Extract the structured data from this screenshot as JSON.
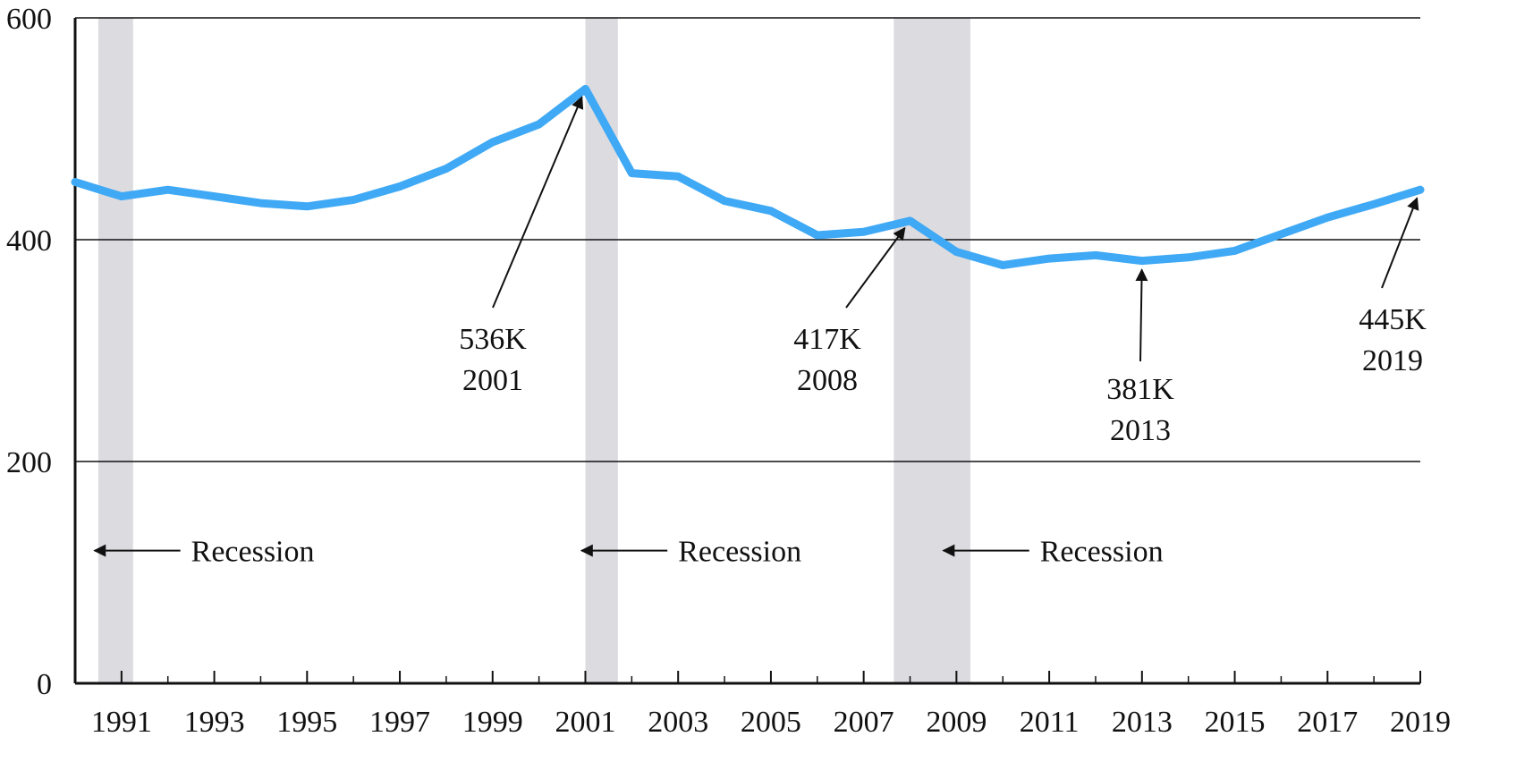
{
  "chart_data": {
    "type": "line",
    "title": "",
    "xlabel": "",
    "ylabel": "",
    "xlim": [
      1990,
      2019
    ],
    "ylim": [
      0,
      600
    ],
    "x_ticks": [
      "1991",
      "1993",
      "1995",
      "1997",
      "1999",
      "2001",
      "2003",
      "2005",
      "2007",
      "2009",
      "2011",
      "2013",
      "2015",
      "2017",
      "2019"
    ],
    "y_ticks": [
      "0",
      "200",
      "400",
      "600"
    ],
    "grid": true,
    "series": [
      {
        "color": "#3fa9f5",
        "x": [
          1990,
          1991,
          1992,
          1993,
          1994,
          1995,
          1996,
          1997,
          1998,
          1999,
          2000,
          2001,
          2002,
          2003,
          2004,
          2005,
          2006,
          2007,
          2008,
          2009,
          2010,
          2011,
          2012,
          2013,
          2014,
          2015,
          2016,
          2017,
          2018,
          2019
        ],
        "values": [
          452,
          439,
          445,
          439,
          433,
          430,
          436,
          448,
          464,
          488,
          504,
          536,
          460,
          457,
          435,
          426,
          404,
          407,
          417,
          389,
          377,
          383,
          386,
          381,
          384,
          390,
          405,
          420,
          432,
          445
        ]
      }
    ],
    "recessions": [
      {
        "start": 1990.5,
        "end": 1991.25
      },
      {
        "start": 2001.0,
        "end": 2001.7
      },
      {
        "start": 2007.65,
        "end": 2009.3
      }
    ],
    "recession_color": "#dcdbe0",
    "recession_labels": [
      {
        "text": "Recession",
        "x": 1992.5
      },
      {
        "text": "Recession",
        "x": 2003.0
      },
      {
        "text": "Recession",
        "x": 2010.8
      }
    ],
    "annotations": [
      {
        "value": "536K",
        "year": "2001",
        "point": [
          2001,
          536
        ]
      },
      {
        "value": "417K",
        "year": "2008",
        "point": [
          2008,
          417
        ]
      },
      {
        "value": "381K",
        "year": "2013",
        "point": [
          2013,
          381
        ]
      },
      {
        "value": "445K",
        "year": "2019",
        "point": [
          2019,
          445
        ]
      }
    ]
  }
}
